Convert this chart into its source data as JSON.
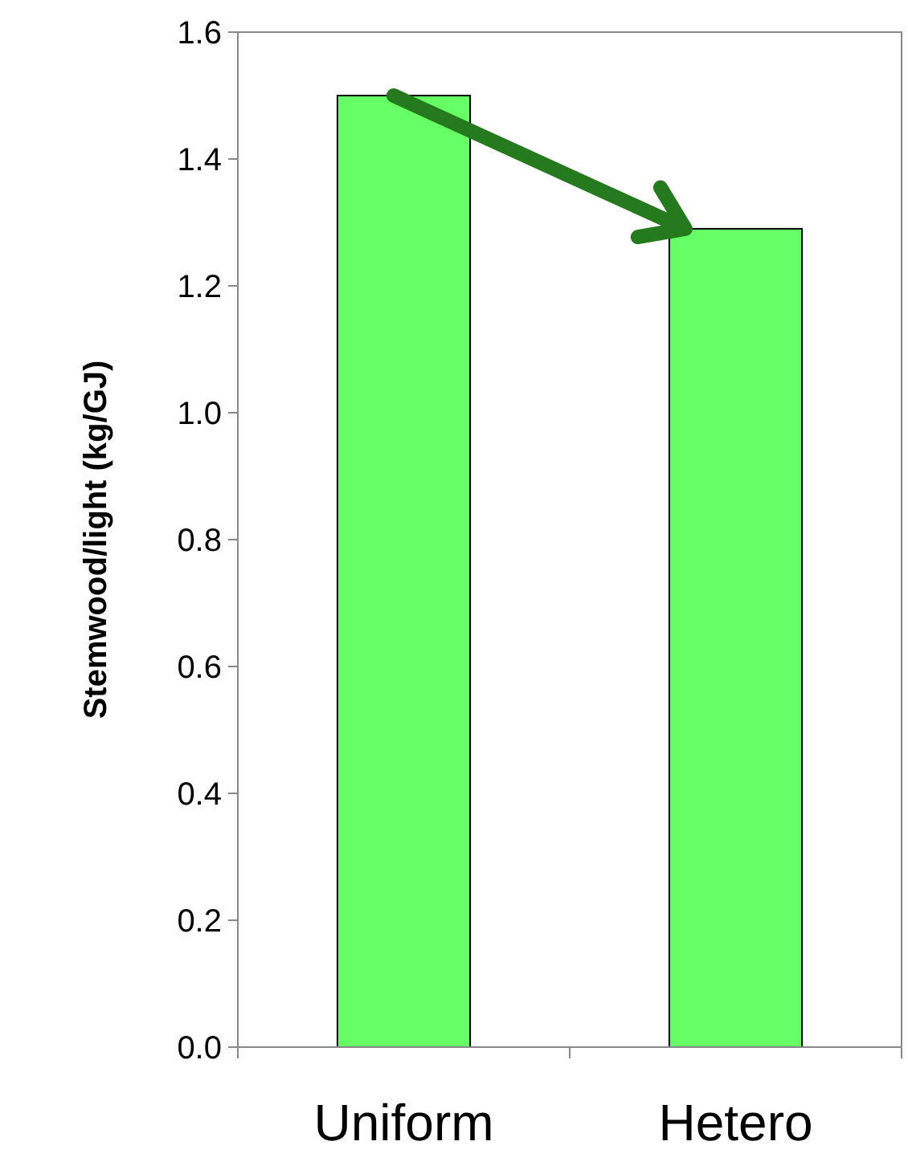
{
  "chart_data": {
    "type": "bar",
    "ylabel": "Stemwood/light (kg/GJ)",
    "categories": [
      "Uniform",
      "Hetero"
    ],
    "values": [
      1.5,
      1.29
    ],
    "color": "#66ff66",
    "ylim": [
      0,
      1.6
    ],
    "yticks": [
      {
        "value": 0,
        "label": "0.0"
      },
      {
        "value": 0.2,
        "label": "0.2"
      },
      {
        "value": 0.4,
        "label": "0.4"
      },
      {
        "value": 0.6,
        "label": "0.6"
      },
      {
        "value": 0.8,
        "label": "0.8"
      },
      {
        "value": 1,
        "label": "1.0"
      },
      {
        "value": 1.2,
        "label": "1.2"
      },
      {
        "value": 1.4,
        "label": "1.4"
      },
      {
        "value": 1.6,
        "label": "1.6"
      }
    ]
  }
}
